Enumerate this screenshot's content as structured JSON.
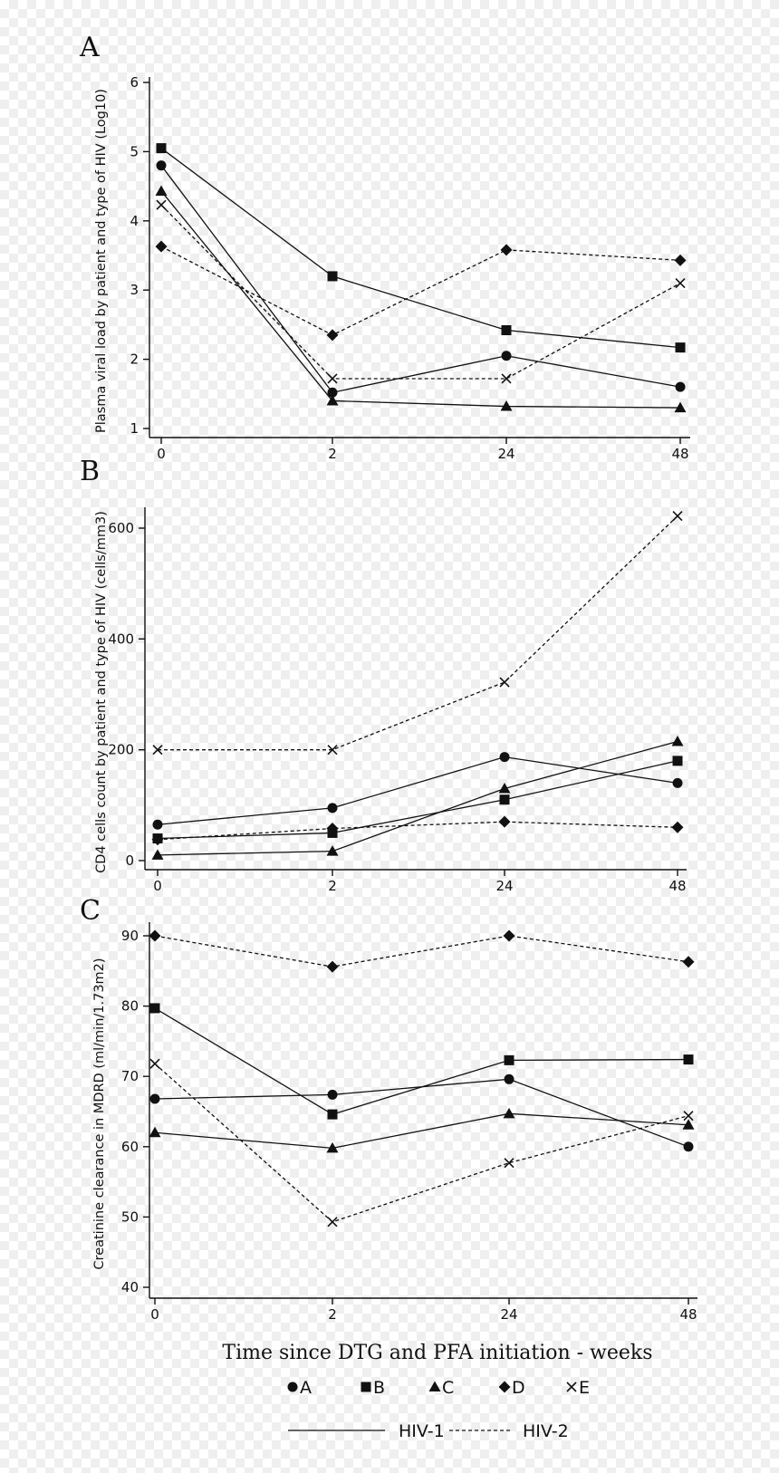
{
  "chart_data": [
    {
      "type": "line",
      "panel": "A",
      "ylabel": "Plasma viral load by patient and type of HIV (Log10)",
      "categories": [
        "0",
        "2",
        "24",
        "48"
      ],
      "yticks": [
        "1",
        "2",
        "3",
        "4",
        "5",
        "6"
      ],
      "ylim": [
        1,
        6
      ],
      "series": [
        {
          "name": "A",
          "hiv": "HIV-1",
          "marker": "circle",
          "values": [
            4.8,
            1.52,
            2.05,
            1.6
          ]
        },
        {
          "name": "B",
          "hiv": "HIV-1",
          "marker": "square",
          "values": [
            5.05,
            3.2,
            2.42,
            2.17
          ]
        },
        {
          "name": "C",
          "hiv": "HIV-1",
          "marker": "triangle",
          "values": [
            4.43,
            1.4,
            1.32,
            1.3
          ]
        },
        {
          "name": "D",
          "hiv": "HIV-2",
          "marker": "diamond",
          "values": [
            3.63,
            2.35,
            3.58,
            3.43
          ]
        },
        {
          "name": "E",
          "hiv": "HIV-2",
          "marker": "x",
          "values": [
            4.23,
            1.72,
            1.72,
            3.1
          ]
        }
      ]
    },
    {
      "type": "line",
      "panel": "B",
      "ylabel": "CD4 cells count by patient and type of HIV (cells/mm3)",
      "categories": [
        "0",
        "2",
        "24",
        "48"
      ],
      "yticks": [
        "0",
        "200",
        "400",
        "600"
      ],
      "ylim": [
        0,
        650
      ],
      "series": [
        {
          "name": "A",
          "hiv": "HIV-1",
          "marker": "circle",
          "values": [
            65,
            95,
            187,
            140
          ]
        },
        {
          "name": "B",
          "hiv": "HIV-1",
          "marker": "square",
          "values": [
            40,
            50,
            110,
            180
          ]
        },
        {
          "name": "C",
          "hiv": "HIV-1",
          "marker": "triangle",
          "values": [
            10,
            17,
            130,
            215
          ]
        },
        {
          "name": "D",
          "hiv": "HIV-2",
          "marker": "diamond",
          "values": [
            38,
            58,
            70,
            60
          ]
        },
        {
          "name": "E",
          "hiv": "HIV-2",
          "marker": "x",
          "values": [
            200,
            200,
            322,
            622
          ]
        }
      ]
    },
    {
      "type": "line",
      "panel": "C",
      "ylabel": "Creatinine clearance in MDRD (ml/min/1.73m2)",
      "categories": [
        "0",
        "2",
        "24",
        "48"
      ],
      "yticks": [
        "40",
        "50",
        "60",
        "70",
        "80",
        "90"
      ],
      "ylim": [
        40,
        91
      ],
      "series": [
        {
          "name": "A",
          "hiv": "HIV-1",
          "marker": "circle",
          "values": [
            66.8,
            67.4,
            69.6,
            60
          ]
        },
        {
          "name": "B",
          "hiv": "HIV-1",
          "marker": "square",
          "values": [
            79.7,
            64.6,
            72.3,
            72.4
          ]
        },
        {
          "name": "C",
          "hiv": "HIV-1",
          "marker": "triangle",
          "values": [
            62,
            59.8,
            64.7,
            63.1
          ]
        },
        {
          "name": "D",
          "hiv": "HIV-2",
          "marker": "diamond",
          "values": [
            90,
            85.6,
            90,
            86.3
          ]
        },
        {
          "name": "E",
          "hiv": "HIV-2",
          "marker": "x",
          "values": [
            71.8,
            49.3,
            57.7,
            64.4
          ]
        }
      ]
    }
  ],
  "xlabel": "Time since DTG and PFA initiation - weeks",
  "legend": {
    "markers": [
      {
        "label": "A",
        "marker": "circle"
      },
      {
        "label": "B",
        "marker": "square"
      },
      {
        "label": "C",
        "marker": "triangle"
      },
      {
        "label": "D",
        "marker": "diamond"
      },
      {
        "label": "E",
        "marker": "x"
      }
    ],
    "lines": [
      {
        "label": "HIV-1",
        "style": "solid"
      },
      {
        "label": "HIV-2",
        "style": "dashed"
      }
    ]
  }
}
